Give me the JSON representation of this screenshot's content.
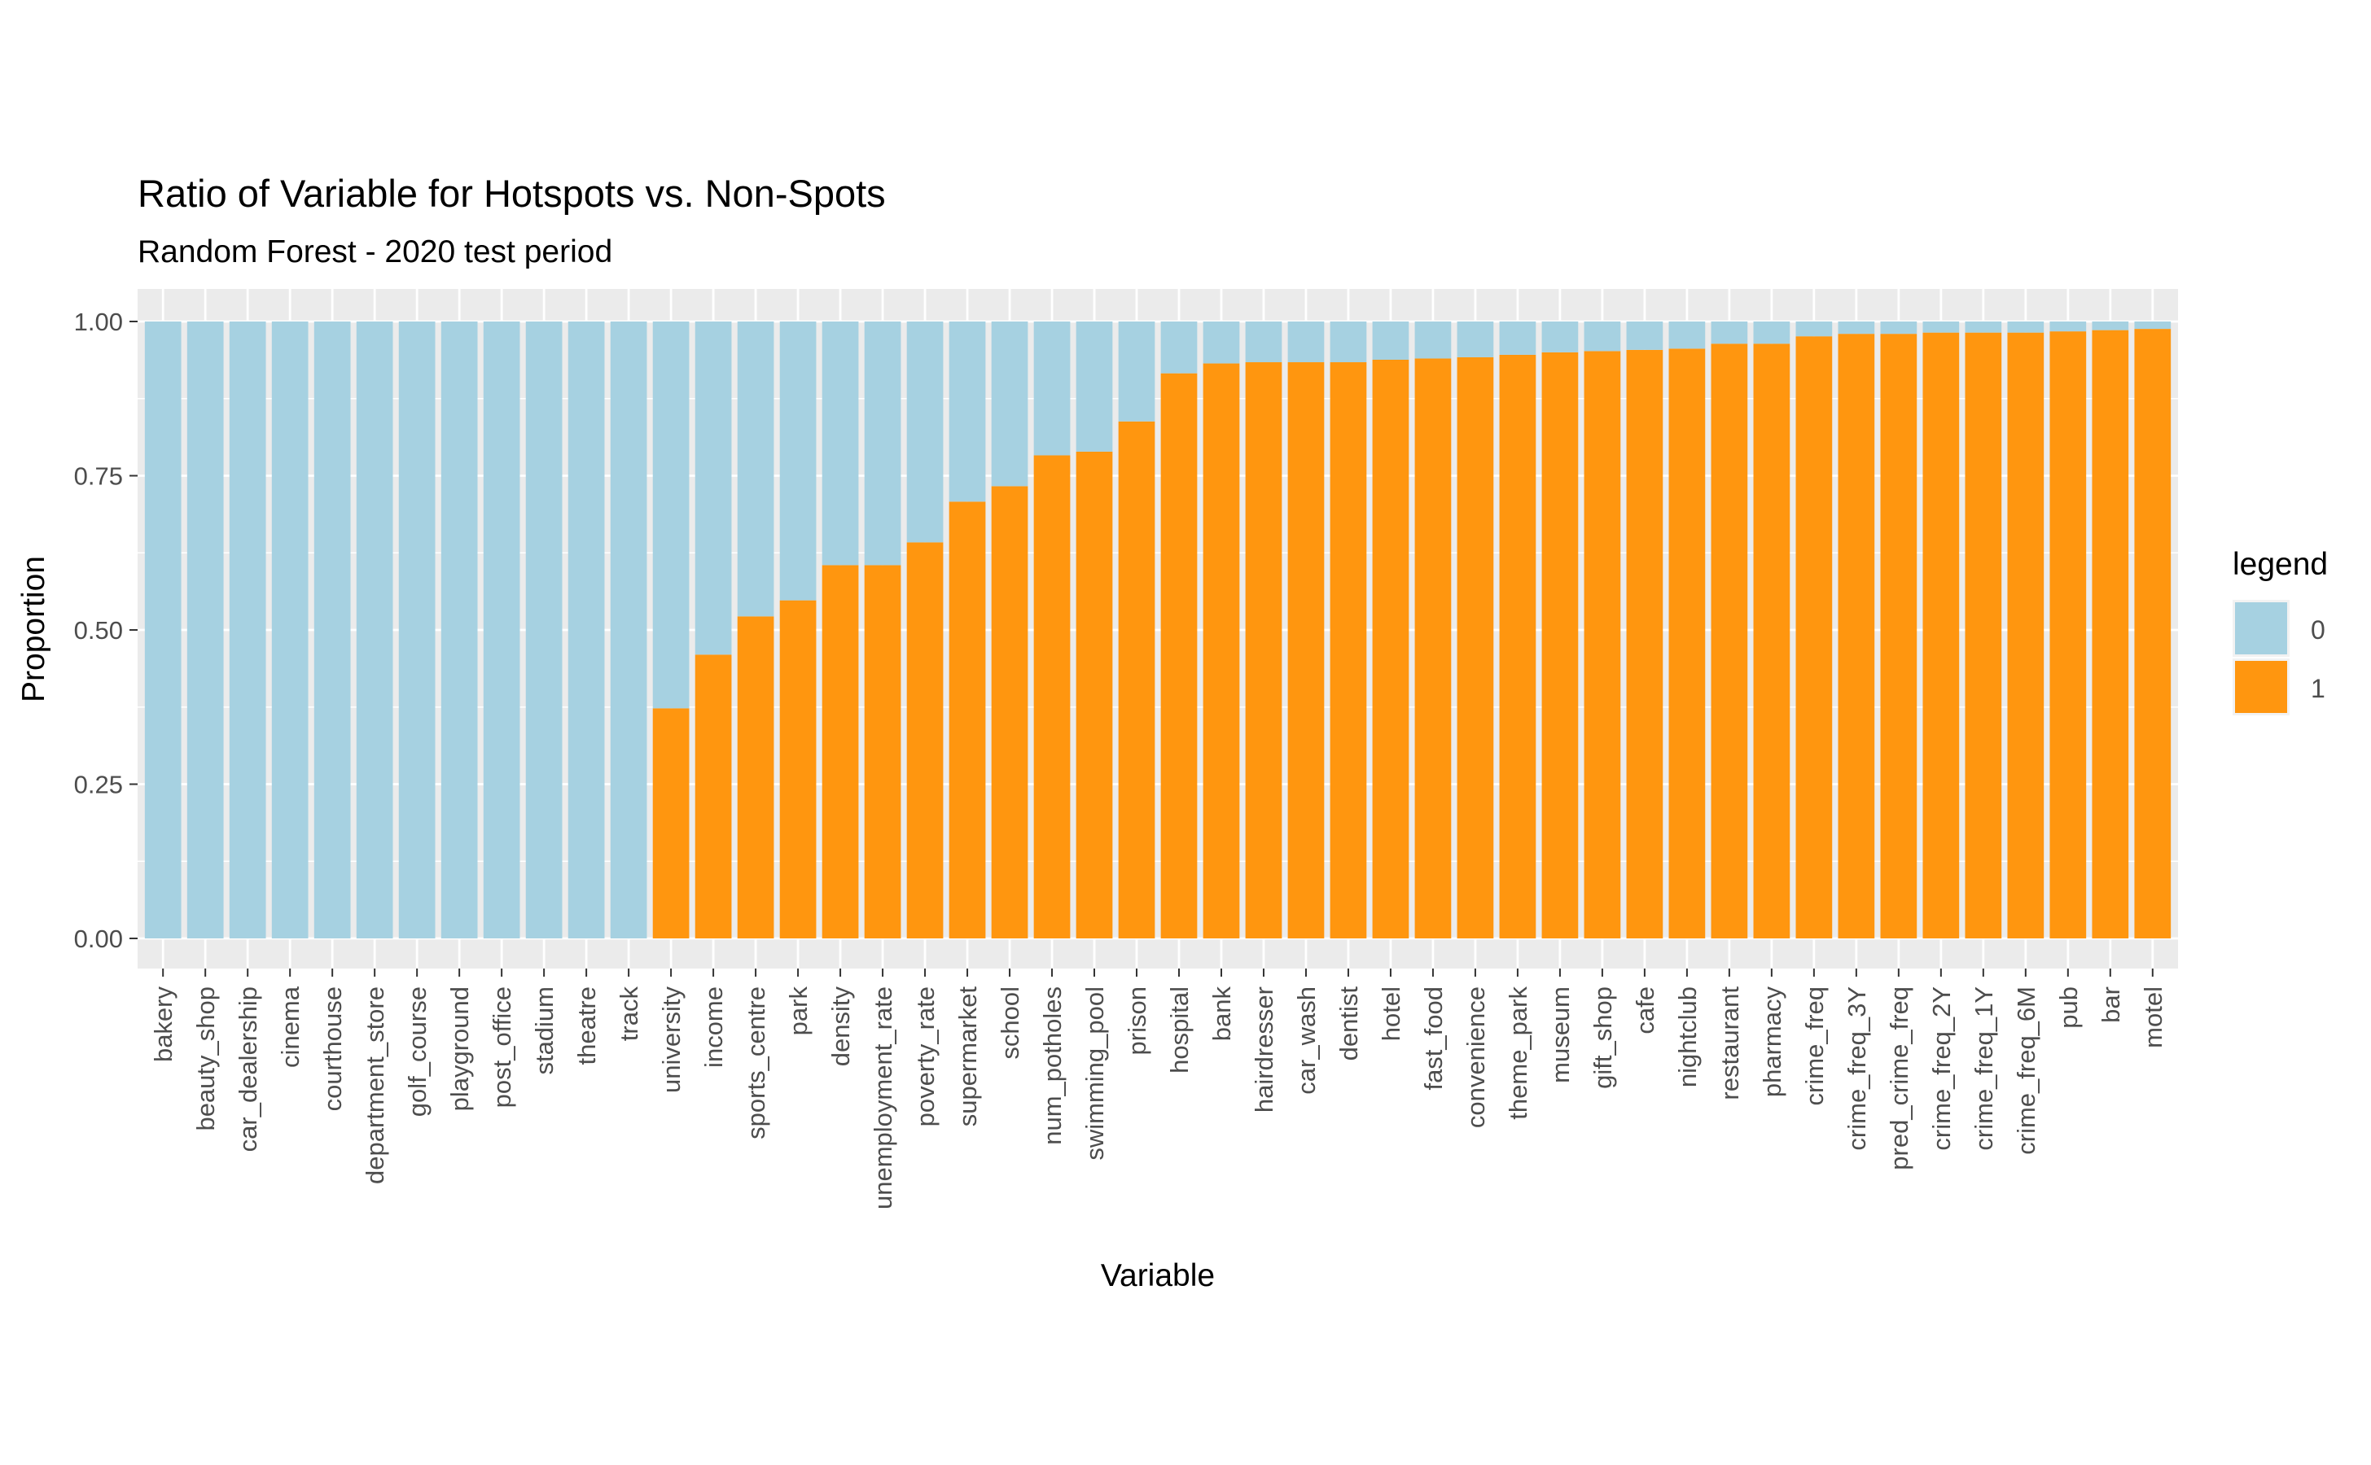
{
  "chart_data": {
    "type": "bar",
    "stacked": true,
    "title": "Ratio of Variable for Hotspots vs. Non-Spots",
    "subtitle": "Random Forest - 2020 test period",
    "xlabel": "Variable",
    "ylabel": "Proportion",
    "ylim": [
      0,
      1
    ],
    "y_ticks": [
      "0.00",
      "0.25",
      "0.50",
      "0.75",
      "1.00"
    ],
    "y_tick_values": [
      0,
      0.25,
      0.5,
      0.75,
      1.0
    ],
    "grid": true,
    "legend_position": "right",
    "legend": {
      "title": "legend",
      "entries": [
        {
          "label": "0",
          "color": "#a6d1e1"
        },
        {
          "label": "1",
          "color": "#ff960f"
        }
      ]
    },
    "categories": [
      "bakery",
      "beauty_shop",
      "car_dealership",
      "cinema",
      "courthouse",
      "department_store",
      "golf_course",
      "playground",
      "post_office",
      "stadium",
      "theatre",
      "track",
      "university",
      "income",
      "sports_centre",
      "park",
      "density",
      "unemployment_rate",
      "poverty_rate",
      "supermarket",
      "school",
      "num_potholes",
      "swimming_pool",
      "prison",
      "hospital",
      "bank",
      "hairdresser",
      "car_wash",
      "dentist",
      "hotel",
      "fast_food",
      "convenience",
      "theme_park",
      "museum",
      "gift_shop",
      "cafe",
      "nightclub",
      "restaurant",
      "pharmacy",
      "crime_freq",
      "crime_freq_3Y",
      "pred_crime_freq",
      "crime_freq_2Y",
      "crime_freq_1Y",
      "crime_freq_6M",
      "pub",
      "bar",
      "motel"
    ],
    "series": [
      {
        "name": "0",
        "color": "#a6d1e1",
        "values": [
          1,
          1,
          1,
          1,
          1,
          1,
          1,
          1,
          1,
          1,
          1,
          1,
          0.627,
          0.54,
          0.478,
          0.452,
          0.395,
          0.395,
          0.358,
          0.292,
          0.267,
          0.217,
          0.211,
          0.162,
          0.084,
          0.068,
          0.066,
          0.066,
          0.066,
          0.062,
          0.06,
          0.058,
          0.054,
          0.05,
          0.048,
          0.046,
          0.044,
          0.036,
          0.036,
          0.024,
          0.02,
          0.02,
          0.018,
          0.018,
          0.018,
          0.016,
          0.014,
          0.012
        ]
      },
      {
        "name": "1",
        "color": "#ff960f",
        "values": [
          0,
          0,
          0,
          0,
          0,
          0,
          0,
          0,
          0,
          0,
          0,
          0,
          0.373,
          0.46,
          0.522,
          0.548,
          0.605,
          0.605,
          0.642,
          0.708,
          0.733,
          0.783,
          0.789,
          0.838,
          0.916,
          0.932,
          0.934,
          0.934,
          0.934,
          0.938,
          0.94,
          0.942,
          0.946,
          0.95,
          0.952,
          0.954,
          0.956,
          0.964,
          0.964,
          0.976,
          0.98,
          0.98,
          0.982,
          0.982,
          0.982,
          0.984,
          0.986,
          0.988
        ]
      }
    ]
  }
}
